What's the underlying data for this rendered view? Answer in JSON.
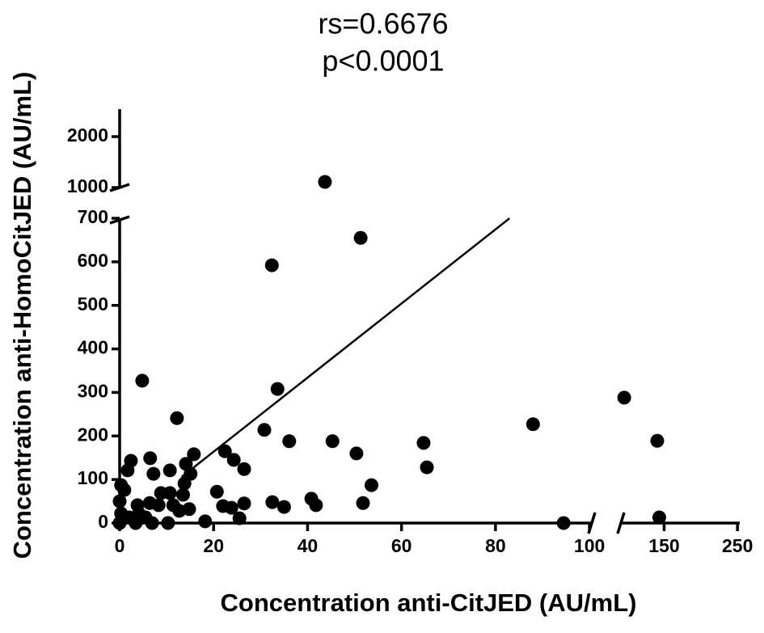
{
  "chart_data": {
    "type": "scatter",
    "title": "rs=0.6676",
    "subtitle": "p<0.0001",
    "x_label": "Concentration anti-CitJED (AU/mL)",
    "y_label": "Concentration anti-HomoCitJED (AU/mL)",
    "color": "#000000",
    "xlim": [
      0,
      100.5
    ],
    "x2lim": [
      111,
      254
    ],
    "x2_log": true,
    "xticks": [
      0,
      20,
      40,
      60,
      80,
      100
    ],
    "x2ticks": [
      150,
      250
    ],
    "ylim": [
      0,
      700
    ],
    "y2lim": [
      1000,
      2540
    ],
    "yticks": [
      0,
      100,
      200,
      300,
      400,
      500,
      600,
      700
    ],
    "y2ticks": [
      1000,
      2000
    ],
    "x": [
      43.7,
      51.3,
      32.4,
      4.8,
      33.6,
      12.2,
      30.8,
      36.1,
      45.3,
      50.4,
      64.7,
      65.4,
      88,
      94.5,
      53.6,
      51.8,
      40.8,
      41.8,
      32.5,
      35,
      26.5,
      26.5,
      22.4,
      24.3,
      20.7,
      22,
      23.8,
      25.5,
      18.2,
      15.8,
      14.1,
      15.1,
      13.8,
      13.5,
      14.8,
      12.7,
      10.7,
      10.7,
      8.8,
      7.2,
      6.5,
      2.4,
      1.7,
      1,
      0.3,
      0,
      0.3,
      2,
      4.1,
      6.4,
      8.3,
      10.3,
      6.9,
      3.4,
      5.5,
      0,
      3.8,
      11.4,
      113.6,
      143,
      145
    ],
    "y": [
      1111,
      655,
      592,
      327,
      308,
      241,
      214,
      188,
      188,
      160,
      184,
      128,
      227,
      0,
      87,
      46,
      56,
      41,
      48,
      37,
      45,
      124,
      165,
      145,
      72,
      39,
      35,
      11,
      4,
      158,
      136,
      113,
      91,
      65,
      32,
      28,
      69,
      121,
      69,
      113,
      149,
      143,
      121,
      76,
      87,
      50,
      22,
      13,
      22,
      46,
      41,
      0,
      0,
      0,
      13,
      0,
      41,
      41,
      288,
      189,
      13
    ],
    "trendline": {
      "x": [
        13.2,
        83
      ],
      "y": [
        106,
        700
      ]
    }
  }
}
